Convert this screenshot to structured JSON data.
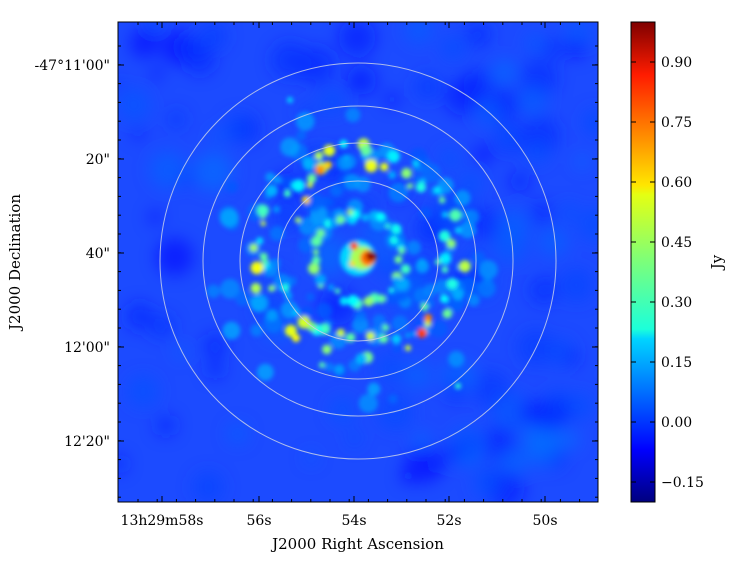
{
  "chart_data": {
    "type": "heatmap",
    "title": "",
    "xlabel": "J2000 Right Ascension",
    "ylabel": "J2000 Declination",
    "x_ticks": [
      "13h29m58s",
      "56s",
      "54s",
      "52s",
      "50s"
    ],
    "y_ticks": [
      "-47°11'00\"",
      "20\"",
      "40\"",
      "12'00\"",
      "12'20\""
    ],
    "colorbar": {
      "label": "Jy",
      "range": [
        -0.2,
        1.0
      ],
      "ticks": [
        "−0.15",
        "0.00",
        "0.15",
        "0.30",
        "0.45",
        "0.60",
        "0.75",
        "0.90"
      ],
      "tick_values": [
        -0.15,
        0.0,
        0.15,
        0.3,
        0.45,
        0.6,
        0.75,
        0.9
      ],
      "colormap": "jet"
    },
    "overlay_circles": 4,
    "background_color": "#1c4bff",
    "circle_color": "#c8d0e8",
    "features": [
      {
        "name": "core",
        "peak_jy": 0.98
      },
      {
        "name": "inner-ring",
        "peak_jy": 0.6
      },
      {
        "name": "outer-ring",
        "peak_jy": 0.75
      }
    ]
  }
}
